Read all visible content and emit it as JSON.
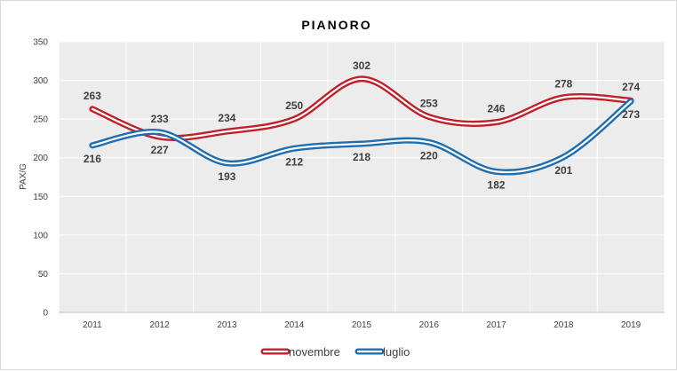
{
  "chart_data": {
    "type": "line",
    "title": "PIANORO",
    "xlabel": "",
    "ylabel": "PAX/G",
    "ylim": [
      0,
      350
    ],
    "yticks": [
      0,
      50,
      100,
      150,
      200,
      250,
      300,
      350
    ],
    "categories": [
      "2011",
      "2012",
      "2013",
      "2014",
      "2015",
      "2016",
      "2017",
      "2018",
      "2019"
    ],
    "grid": true,
    "legend_position": "bottom",
    "series": [
      {
        "name": "novembre",
        "color": "#c0202a",
        "values": [
          263,
          227,
          234,
          250,
          302,
          253,
          246,
          278,
          274
        ]
      },
      {
        "name": "luglio",
        "color": "#1f6fb0",
        "values": [
          216,
          233,
          193,
          212,
          218,
          220,
          182,
          201,
          273
        ]
      }
    ]
  }
}
